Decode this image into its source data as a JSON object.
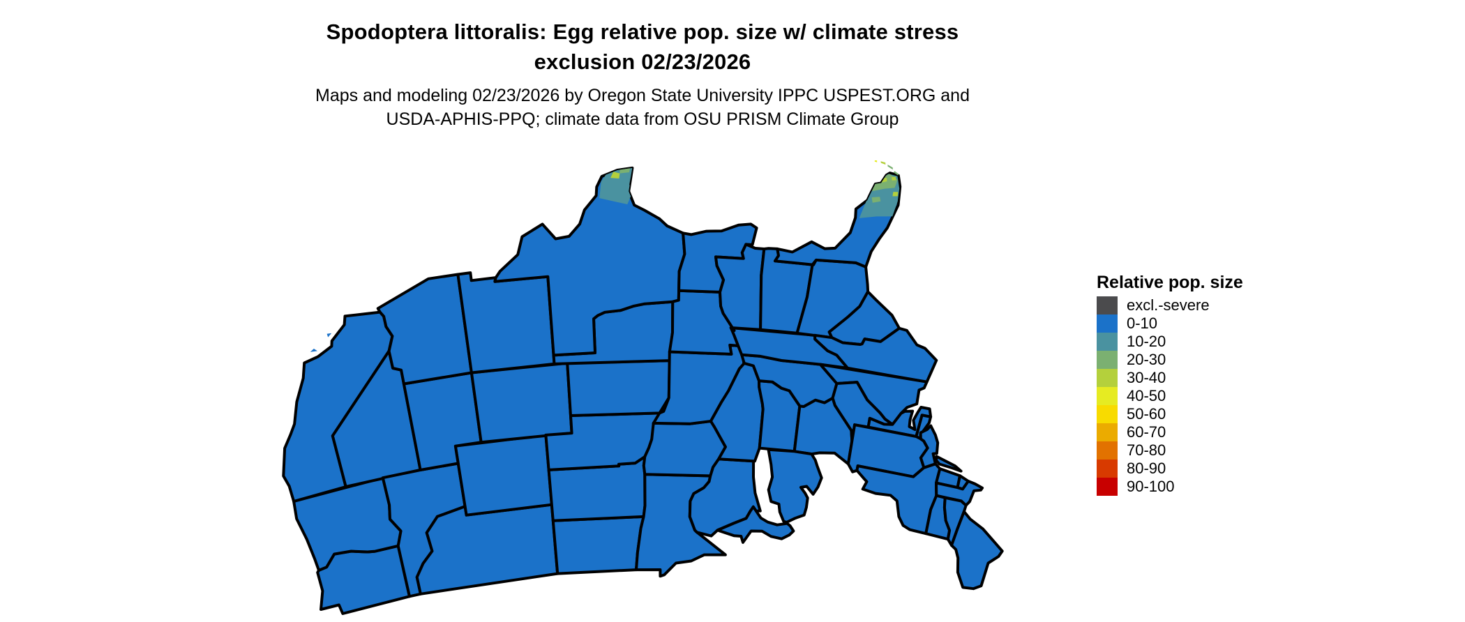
{
  "header": {
    "title_line1": "Spodoptera littoralis: Egg relative pop. size w/ climate stress",
    "title_line2": "exclusion 02/23/2026",
    "subtitle_line1": "Maps and modeling 02/23/2026 by Oregon State University IPPC USPEST.ORG and",
    "subtitle_line2": "USDA-APHIS-PPQ; climate data from OSU PRISM Climate Group"
  },
  "legend": {
    "title": "Relative pop. size",
    "items": [
      {
        "label": "excl.-severe",
        "color": "#4b4b4d"
      },
      {
        "label": "0-10",
        "color": "#1b72c9"
      },
      {
        "label": "10-20",
        "color": "#4a92a0"
      },
      {
        "label": "20-30",
        "color": "#7bb071"
      },
      {
        "label": "30-40",
        "color": "#b4d03c"
      },
      {
        "label": "40-50",
        "color": "#e6eb22"
      },
      {
        "label": "50-60",
        "color": "#f8db00"
      },
      {
        "label": "60-70",
        "color": "#ebab00"
      },
      {
        "label": "70-80",
        "color": "#e27200"
      },
      {
        "label": "80-90",
        "color": "#d83a00"
      },
      {
        "label": "90-100",
        "color": "#c80000"
      }
    ]
  },
  "map": {
    "background": "#ffffff",
    "border_color": "#000000",
    "base_category": "0-10",
    "regions": [
      {
        "region": "Contiguous United States (nearly all areas)",
        "category": "0-10"
      },
      {
        "region": "Southern tip of Texas (Rio Grande Valley)",
        "category": "10-20 to 30-40"
      },
      {
        "region": "Southern Florida peninsula",
        "category": "10-20 to 30-40"
      },
      {
        "region": "Florida Keys",
        "category": "20-30 to 40-50"
      }
    ]
  }
}
